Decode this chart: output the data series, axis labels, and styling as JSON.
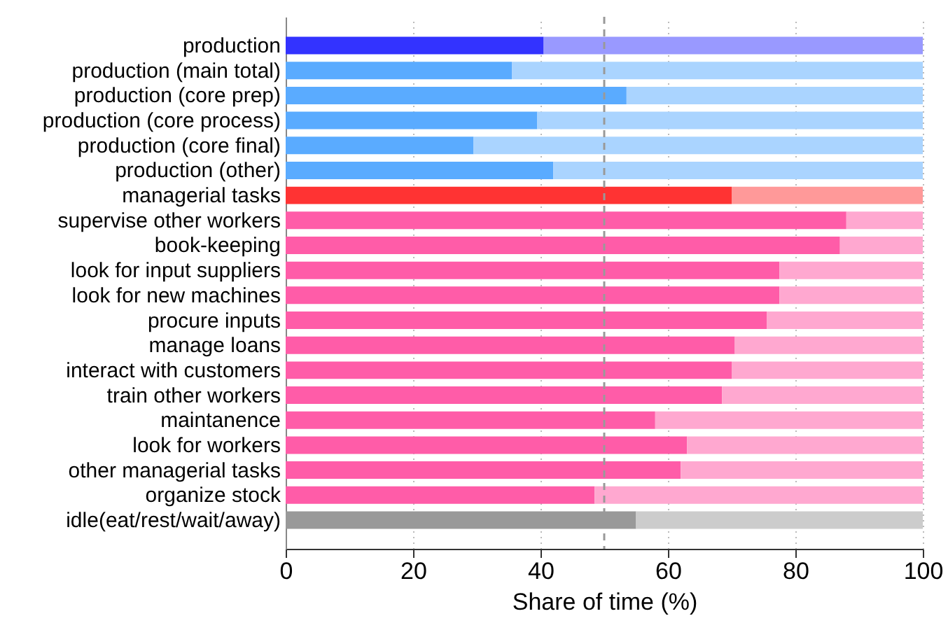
{
  "chart_data": {
    "type": "bar",
    "orientation": "horizontal",
    "stacked": true,
    "categories": [
      "production",
      "production (main total)",
      "production (core prep)",
      "production (core process)",
      "production (core final)",
      "production (other)",
      "managerial tasks",
      "supervise other workers",
      "book-keeping",
      "look for input suppliers",
      "look for new machines",
      "procure inputs",
      "manage loans",
      "interact with customers",
      "train other workers",
      "maintanence",
      "look for workers",
      "other managerial tasks",
      "organize stock",
      "idle(eat/rest/wait/away)"
    ],
    "series": [
      {
        "colors": [
          "#3333ff",
          "#5aabff",
          "#5aabff",
          "#5aabff",
          "#5aabff",
          "#5aabff",
          "#ff3333",
          "#ff5ca8",
          "#ff5ca8",
          "#ff5ca8",
          "#ff5ca8",
          "#ff5ca8",
          "#ff5ca8",
          "#ff5ca8",
          "#ff5ca8",
          "#ff5ca8",
          "#ff5ca8",
          "#ff5ca8",
          "#ff5ca8",
          "#999999"
        ],
        "values": [
          40.5,
          35.5,
          53.5,
          39.5,
          29.5,
          42,
          70,
          88,
          87,
          77.5,
          77.5,
          75.5,
          70.5,
          70,
          68.5,
          58,
          63,
          62,
          48.5,
          55
        ]
      },
      {
        "colors": [
          "#9999ff",
          "#aad4ff",
          "#aad4ff",
          "#aad4ff",
          "#aad4ff",
          "#aad4ff",
          "#ff9999",
          "#ffa8d0",
          "#ffa8d0",
          "#ffa8d0",
          "#ffa8d0",
          "#ffa8d0",
          "#ffa8d0",
          "#ffa8d0",
          "#ffa8d0",
          "#ffa8d0",
          "#ffa8d0",
          "#ffa8d0",
          "#ffa8d0",
          "#cccccc"
        ],
        "values": [
          59.5,
          64.5,
          46.5,
          60.5,
          70.5,
          58,
          30,
          12,
          13,
          22.5,
          22.5,
          24.5,
          29.5,
          30,
          31.5,
          42,
          37,
          38,
          51.5,
          45
        ]
      }
    ],
    "xlabel": "Share of time (%)",
    "xlim": [
      0,
      100
    ],
    "xticks": [
      0,
      20,
      40,
      60,
      80,
      100
    ],
    "grid": "x",
    "ref_lines": [
      {
        "axis": "x",
        "value": 50,
        "color": "#999999",
        "line_style": "dashed"
      }
    ]
  }
}
